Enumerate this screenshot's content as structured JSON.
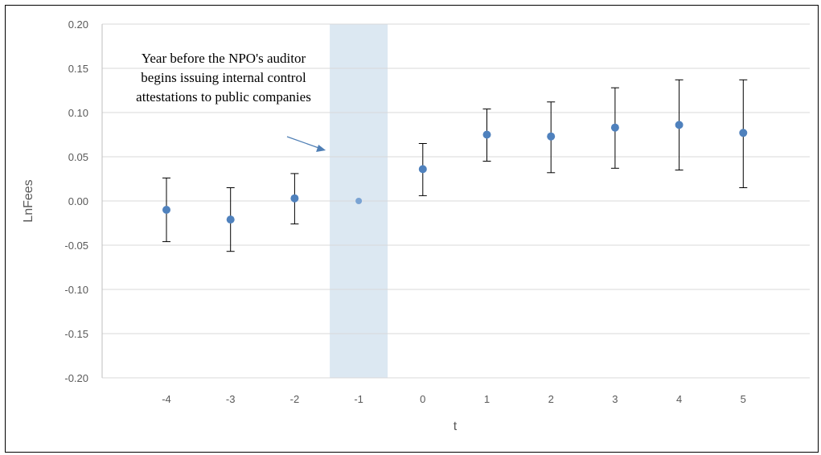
{
  "chart_data": {
    "type": "scatter",
    "title": "",
    "xlabel": "t",
    "ylabel": "LnFees",
    "x_categories": [
      "-4",
      "-3",
      "-2",
      "-1",
      "0",
      "1",
      "2",
      "3",
      "4",
      "5"
    ],
    "y_ticks": [
      "0.20",
      "0.15",
      "0.10",
      "0.05",
      "0.00",
      "-0.05",
      "-0.10",
      "-0.15",
      "-0.20"
    ],
    "ylim": [
      -0.2,
      0.2
    ],
    "grid": "horizontal",
    "series": [
      {
        "x": [
          -4,
          -3,
          -2,
          -1,
          0,
          1,
          2,
          3,
          4,
          5
        ],
        "y": [
          -0.01,
          -0.021,
          0.003,
          0.0,
          0.036,
          0.075,
          0.073,
          0.083,
          0.086,
          0.077
        ],
        "ci_low": [
          -0.046,
          -0.057,
          -0.026,
          null,
          0.006,
          0.045,
          0.032,
          0.037,
          0.035,
          0.015
        ],
        "ci_high": [
          0.026,
          0.015,
          0.031,
          null,
          0.065,
          0.104,
          0.112,
          0.128,
          0.137,
          0.137
        ]
      }
    ],
    "highlight_band": {
      "x": -1
    },
    "annotation": {
      "lines": [
        "Year before the NPO's auditor",
        "begins issuing internal control",
        "attestations to public companies"
      ],
      "points_to_x": -1
    }
  },
  "colors": {
    "marker": "#4f81bd",
    "marker_reference": "#7aa3d3",
    "band": "#dce8f2",
    "grid": "#d9d9d9",
    "axis": "#bfbfbf",
    "error_bar": "#000000",
    "arrow": "#4f7fb5"
  }
}
